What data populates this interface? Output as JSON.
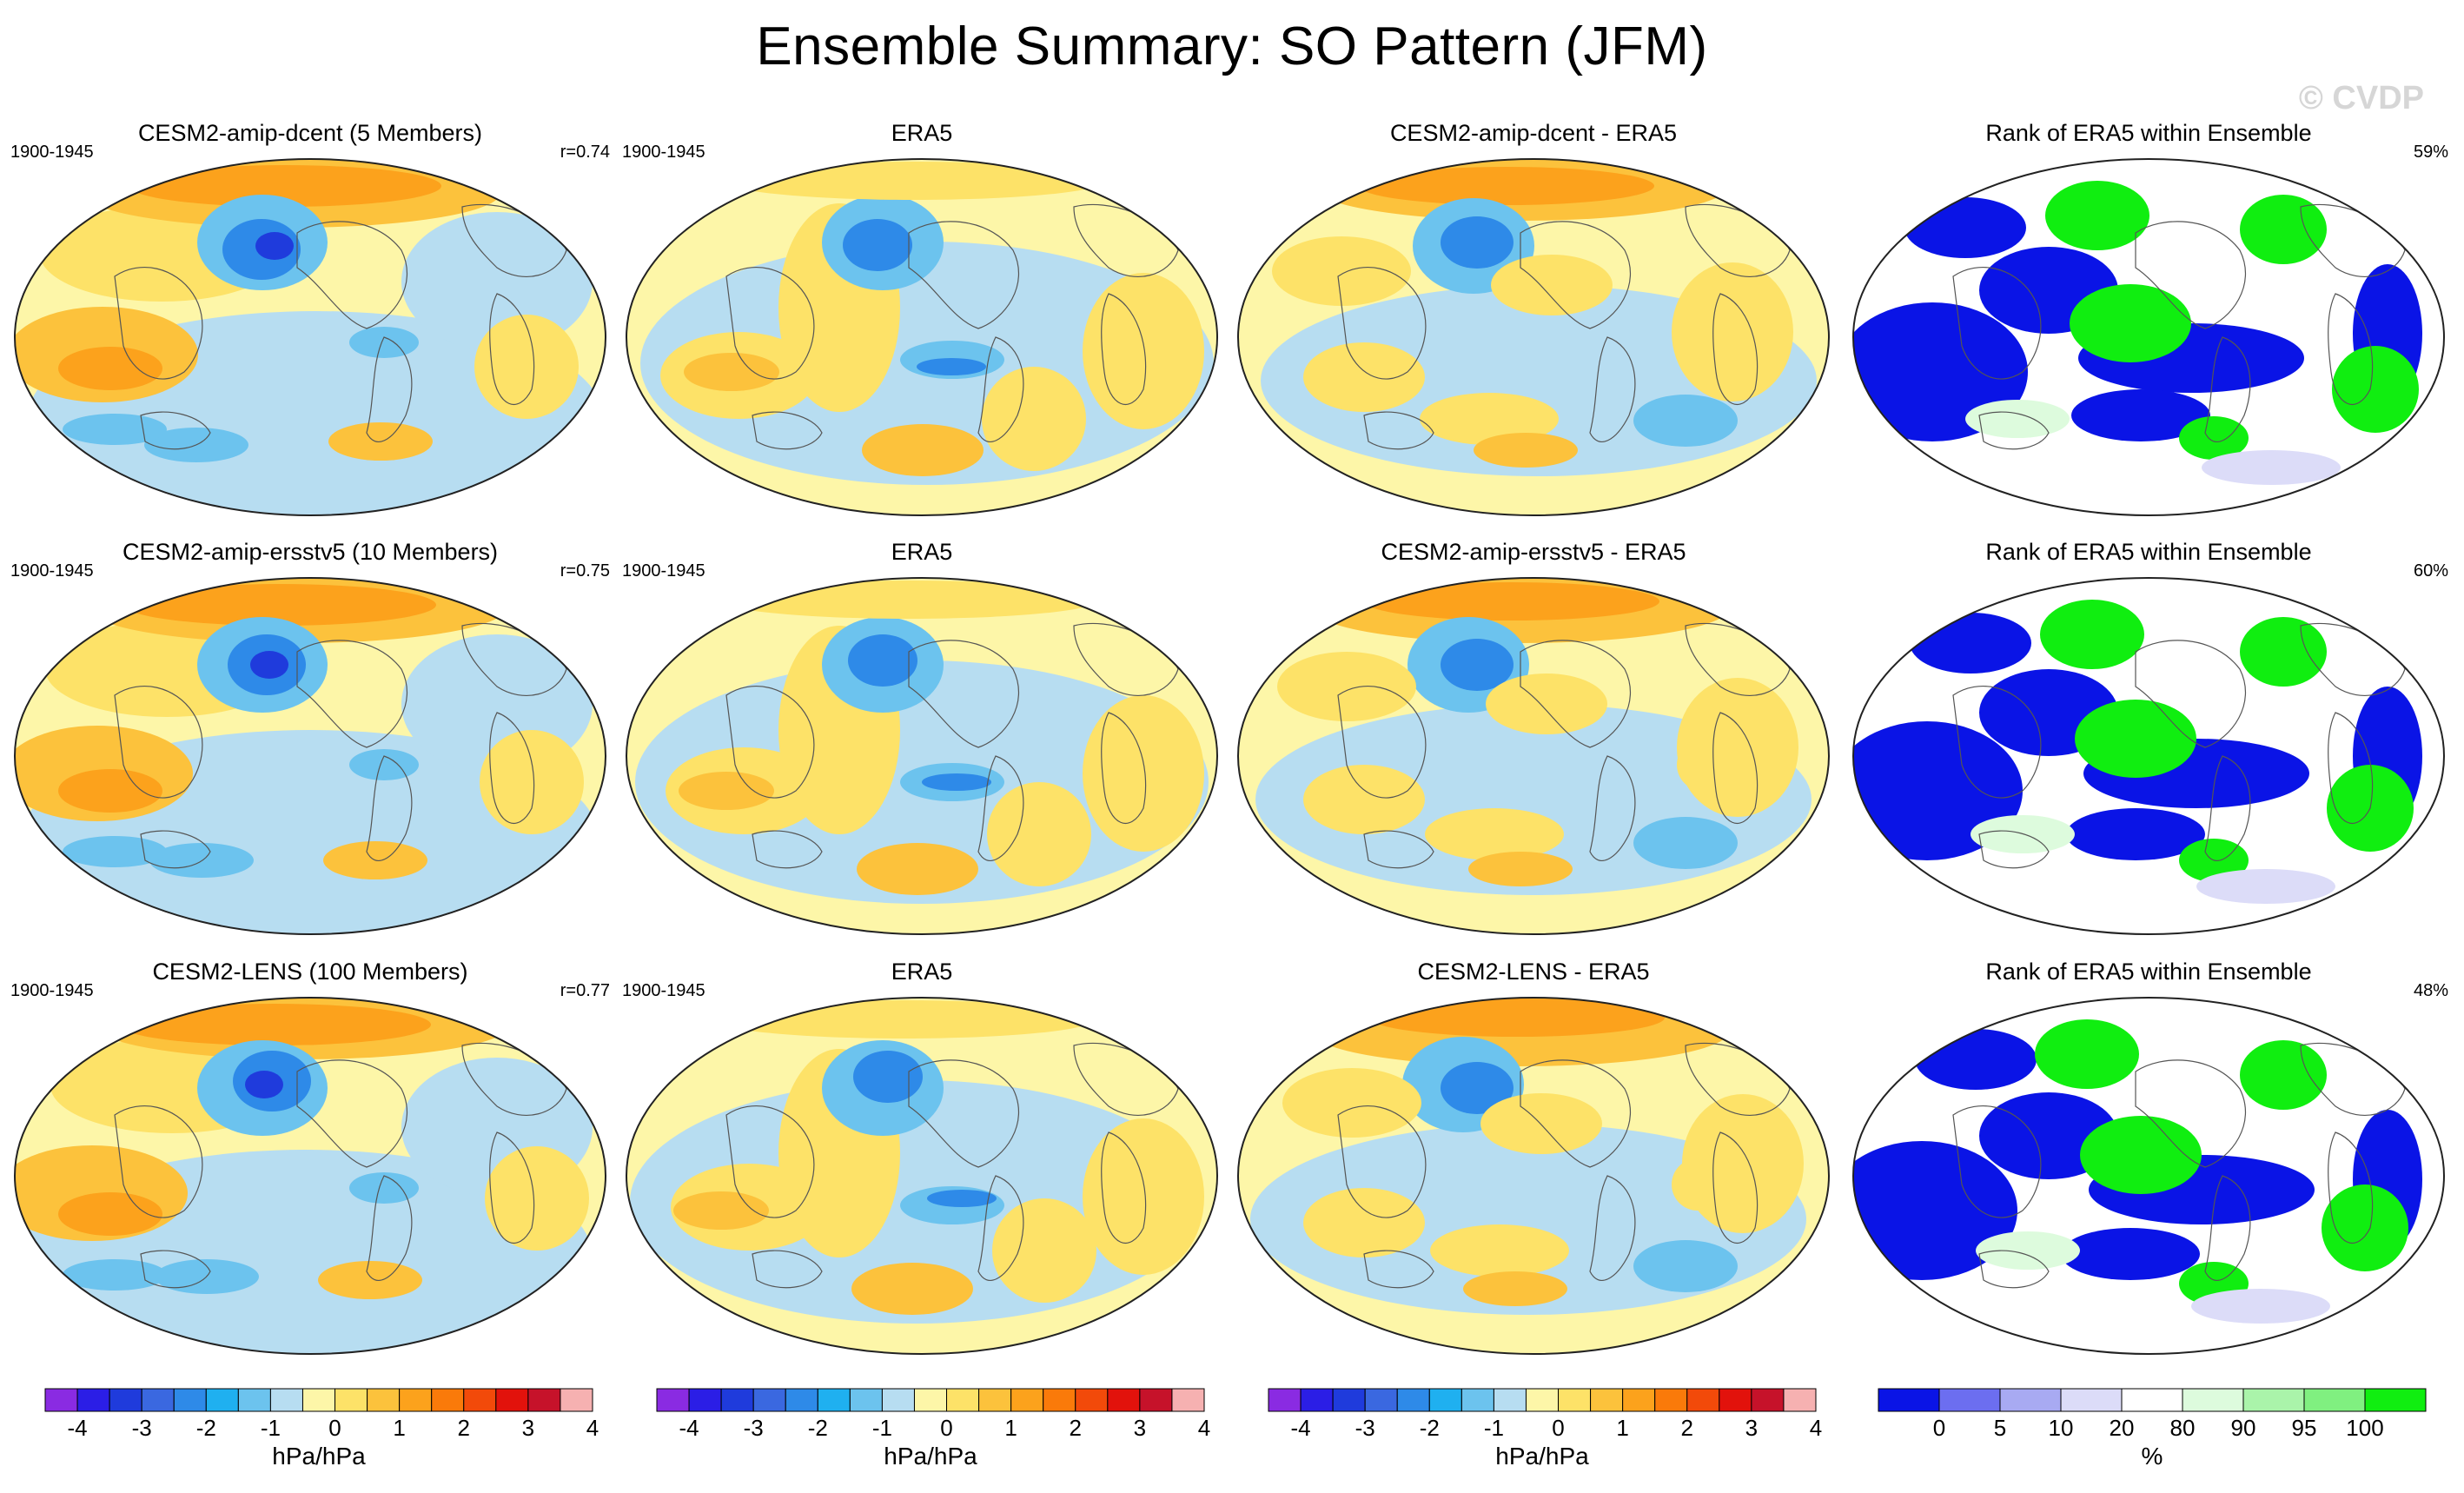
{
  "title": "Ensemble Summary: SO Pattern (JFM)",
  "watermark": "© CVDP",
  "rows": [
    {
      "panels": [
        {
          "title": "CESM2-amip-dcent (5 Members)",
          "left": "1900-1945",
          "right": "r=0.74",
          "kind": "ensemble"
        },
        {
          "title": "ERA5",
          "left": "1900-1945",
          "right": "",
          "kind": "obs"
        },
        {
          "title": "CESM2-amip-dcent - ERA5",
          "left": "",
          "right": "",
          "kind": "diff"
        },
        {
          "title": "Rank of ERA5 within Ensemble",
          "left": "",
          "right": "59%",
          "kind": "rank"
        }
      ]
    },
    {
      "panels": [
        {
          "title": "CESM2-amip-ersstv5 (10 Members)",
          "left": "1900-1945",
          "right": "r=0.75",
          "kind": "ensemble"
        },
        {
          "title": "ERA5",
          "left": "1900-1945",
          "right": "",
          "kind": "obs"
        },
        {
          "title": "CESM2-amip-ersstv5 - ERA5",
          "left": "",
          "right": "",
          "kind": "diff"
        },
        {
          "title": "Rank of ERA5 within Ensemble",
          "left": "",
          "right": "60%",
          "kind": "rank"
        }
      ]
    },
    {
      "panels": [
        {
          "title": "CESM2-LENS (100 Members)",
          "left": "1900-1945",
          "right": "r=0.77",
          "kind": "ensemble"
        },
        {
          "title": "ERA5",
          "left": "1900-1945",
          "right": "",
          "kind": "obs"
        },
        {
          "title": "CESM2-LENS - ERA5",
          "left": "",
          "right": "",
          "kind": "diff"
        },
        {
          "title": "Rank of ERA5 within Ensemble",
          "left": "",
          "right": "48%",
          "kind": "rank"
        }
      ]
    }
  ],
  "colorbars": {
    "pattern": {
      "unit": "hPa/hPa",
      "tick_labels": [
        "-4",
        "-3",
        "-2",
        "-1",
        "0",
        "1",
        "2",
        "3",
        "4"
      ],
      "colors": [
        "#8a2be2",
        "#2b1ee6",
        "#1f3bdc",
        "#3a68e0",
        "#2e8ae8",
        "#1fb0f0",
        "#6cc3ee",
        "#b7ddf1",
        "#fdf6a8",
        "#fde268",
        "#fcc23c",
        "#fca21c",
        "#fa7a0a",
        "#f24a0a",
        "#e2120c",
        "#c6122a",
        "#f6b1b1"
      ]
    },
    "rank": {
      "unit": "%",
      "tick_labels": [
        "0",
        "5",
        "10",
        "20",
        "80",
        "90",
        "95",
        "100"
      ],
      "colors": [
        "#0a14e6",
        "#6c6ef0",
        "#a8aaf2",
        "#dcdcf8",
        "#ffffff",
        "#ddfbdd",
        "#aaf4aa",
        "#80f080",
        "#10ee10"
      ]
    }
  },
  "palette": {
    "ocean_bg": "#fdf6a8",
    "light_blue": "#b7ddf1",
    "mid_blue": "#6cc3ee",
    "blue": "#2e8ae8",
    "deep_blue": "#1f3bdc",
    "yellow": "#fde268",
    "orange": "#fcc23c",
    "dark_orange": "#fca21c",
    "rank_blue": "#0a14e6",
    "rank_green": "#10ee10",
    "rank_light_green": "#ddfbdd",
    "rank_pale_blue": "#dcdcf8"
  }
}
